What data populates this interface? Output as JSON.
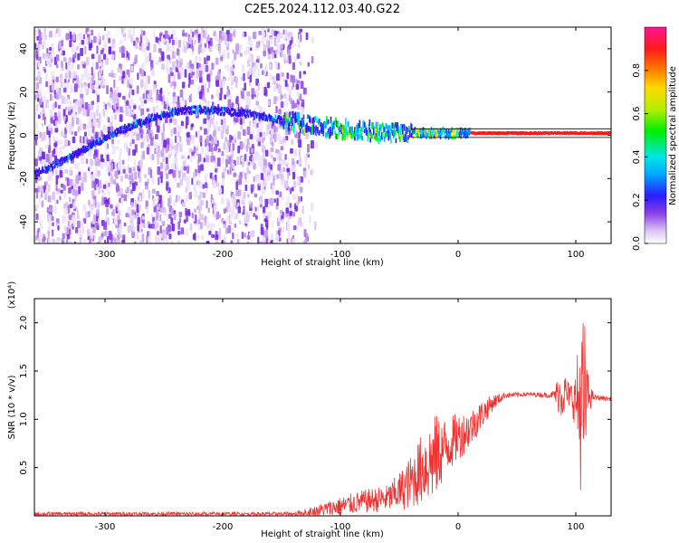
{
  "title": "C2E5.2024.112.03.40.G22",
  "chart_data": [
    {
      "type": "heatmap",
      "xlabel": "Height of straight line (km)",
      "ylabel": "Frequency (Hz)",
      "xlim": [
        -360,
        130
      ],
      "ylim": [
        -50,
        50
      ],
      "xticks": [
        -300,
        -200,
        -100,
        0,
        100
      ],
      "yticks": [
        -40,
        -20,
        0,
        20,
        40
      ],
      "colorbar": {
        "label": "Normalized spectral amplitude",
        "range": [
          0.0,
          1.0
        ],
        "ticks": [
          0.0,
          0.2,
          0.4,
          0.6,
          0.8
        ],
        "tick_labels": [
          "0.0",
          "0.2",
          "0.4",
          "0.6",
          "0.8"
        ]
      },
      "ridge": {
        "x": [
          -360,
          -340,
          -320,
          -300,
          -280,
          -260,
          -240,
          -220,
          -200,
          -180,
          -160,
          -150,
          -140,
          -120,
          -100,
          -80,
          -60,
          -40,
          -20,
          0,
          20,
          40,
          60,
          80,
          100,
          130
        ],
        "y": [
          -18,
          -13,
          -7,
          -1,
          4,
          8,
          11,
          12,
          11,
          10,
          8,
          7,
          6,
          4,
          3,
          2,
          1,
          1,
          1,
          1,
          1,
          1,
          1,
          1,
          1,
          1
        ]
      },
      "noise_extent_x": [
        -360,
        -140
      ]
    },
    {
      "type": "line",
      "xlabel": "Height of straight line (km)",
      "ylabel": "SNR (10 * v/v)",
      "y_multiplier": "(x10⁴)",
      "xlim": [
        -360,
        130
      ],
      "ylim": [
        0,
        2.25
      ],
      "xticks": [
        -300,
        -200,
        -100,
        0,
        100
      ],
      "yticks": [
        0.5,
        1.0,
        1.5,
        2.0
      ],
      "ytick_labels": [
        "0.5",
        "1.0",
        "1.5",
        "2.0"
      ],
      "color": "#ee3333",
      "envelope": {
        "x": [
          -360,
          -140,
          -120,
          -100,
          -80,
          -60,
          -50,
          -40,
          -30,
          -20,
          -10,
          0,
          10,
          20,
          30,
          40,
          60,
          80,
          88,
          95,
          100,
          103,
          107,
          110,
          115,
          130
        ],
        "mean": [
          0.02,
          0.02,
          0.05,
          0.1,
          0.15,
          0.18,
          0.25,
          0.35,
          0.5,
          0.6,
          0.72,
          0.82,
          0.9,
          1.05,
          1.18,
          1.25,
          1.26,
          1.25,
          1.27,
          1.25,
          1.2,
          1.15,
          1.1,
          1.25,
          1.23,
          1.21
        ],
        "amplitude": [
          0.02,
          0.02,
          0.06,
          0.1,
          0.12,
          0.14,
          0.2,
          0.28,
          0.38,
          0.45,
          0.3,
          0.25,
          0.2,
          0.15,
          0.08,
          0.03,
          0.02,
          0.03,
          0.28,
          0.12,
          0.3,
          0.8,
          1.05,
          0.25,
          0.03,
          0.02
        ]
      }
    }
  ]
}
